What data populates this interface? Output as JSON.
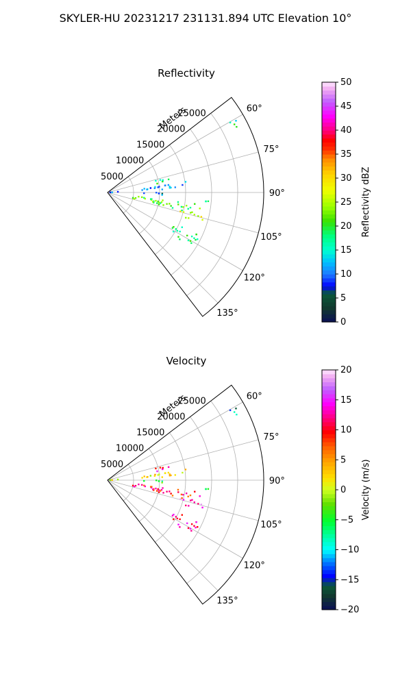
{
  "suptitle": "SKYLER-HU  20231217  231131.894 UTC Elevation 10°",
  "chart_data": [
    {
      "type": "heatmap",
      "projection": "polar-sector",
      "title": "Reflectivity",
      "radial_label": "Meters",
      "range_ticks": [
        "5000",
        "10000",
        "15000",
        "20000",
        "25000"
      ],
      "range_max": 30000,
      "azimuth_range": [
        52.5,
        142.5
      ],
      "azimuth_ticks": [
        "60°",
        "75°",
        "90°",
        "105°",
        "120°",
        "135°"
      ],
      "grid": true,
      "colorbar": {
        "label": "Reflectivity dBZ",
        "min": 0,
        "max": 50,
        "ticks": [
          "0",
          "5",
          "10",
          "15",
          "20",
          "25",
          "30",
          "35",
          "40",
          "45",
          "50"
        ],
        "colormap": "pyart_HomeyerRainbow"
      },
      "echo_regions": [
        {
          "az": [
            75,
            80
          ],
          "range_m": [
            9000,
            12500
          ],
          "value": 18
        },
        {
          "az": [
            82,
            87
          ],
          "range_m": [
            6500,
            16000
          ],
          "value": 11
        },
        {
          "az": [
            90,
            93
          ],
          "range_m": [
            6500,
            11500
          ],
          "value": 9
        },
        {
          "az": [
            97,
            104
          ],
          "range_m": [
            4500,
            18000
          ],
          "value": 21
        },
        {
          "az": [
            104,
            108
          ],
          "range_m": [
            14000,
            19000
          ],
          "value": 27
        },
        {
          "az": [
            115,
            123
          ],
          "range_m": [
            13500,
            19500
          ],
          "value": 18
        },
        {
          "az": [
            93,
            96
          ],
          "range_m": [
            17000,
            19500
          ],
          "value": 17
        },
        {
          "az": [
            86,
            90
          ],
          "range_m": [
            0,
            2000
          ],
          "value": 10
        },
        {
          "az": [
            60,
            64
          ],
          "range_m": [
            27000,
            29500
          ],
          "value": 17
        }
      ]
    },
    {
      "type": "heatmap",
      "projection": "polar-sector",
      "title": "Velocity",
      "radial_label": "Meters",
      "range_ticks": [
        "5000",
        "10000",
        "15000",
        "20000",
        "25000"
      ],
      "range_max": 30000,
      "azimuth_range": [
        52.5,
        142.5
      ],
      "azimuth_ticks": [
        "60°",
        "75°",
        "90°",
        "105°",
        "120°",
        "135°"
      ],
      "grid": true,
      "colorbar": {
        "label": "Velocity (m/s)",
        "min": -20,
        "max": 20,
        "ticks": [
          "−20",
          "−15",
          "−10",
          "−5",
          "0",
          "5",
          "10",
          "15",
          "20"
        ],
        "colormap": "pyart_BuDRd18"
      },
      "echo_regions": [
        {
          "az": [
            75,
            80
          ],
          "range_m": [
            9000,
            12500
          ],
          "value": 12
        },
        {
          "az": [
            82,
            87
          ],
          "range_m": [
            6500,
            16000
          ],
          "value": 2
        },
        {
          "az": [
            90,
            93
          ],
          "range_m": [
            6500,
            11500
          ],
          "value": -5
        },
        {
          "az": [
            97,
            104
          ],
          "range_m": [
            4500,
            18000
          ],
          "value": 10
        },
        {
          "az": [
            104,
            108
          ],
          "range_m": [
            14000,
            19000
          ],
          "value": 15
        },
        {
          "az": [
            115,
            123
          ],
          "range_m": [
            13500,
            19500
          ],
          "value": 12
        },
        {
          "az": [
            93,
            96
          ],
          "range_m": [
            17000,
            19500
          ],
          "value": -6
        },
        {
          "az": [
            86,
            90
          ],
          "range_m": [
            0,
            2000
          ],
          "value": 1
        },
        {
          "az": [
            60,
            64
          ],
          "range_m": [
            27000,
            29500
          ],
          "value": -12
        }
      ]
    }
  ]
}
